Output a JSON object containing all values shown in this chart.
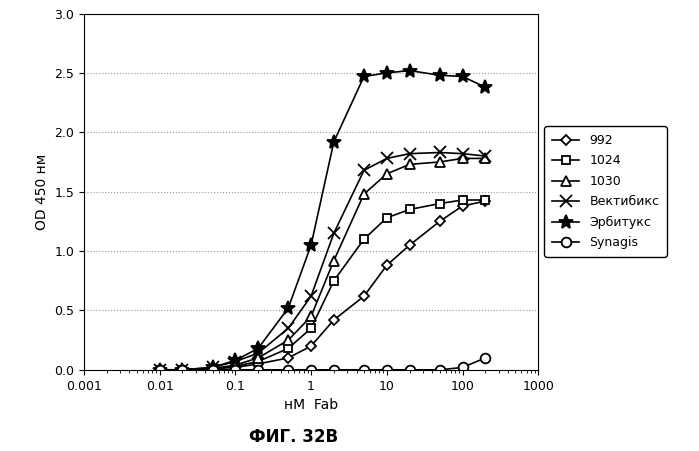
{
  "title": "ФИГ. 32В",
  "xlabel": "нМ  Fab",
  "ylabel": "OD 450 нм",
  "xlim": [
    0.001,
    1000
  ],
  "ylim": [
    0,
    3
  ],
  "yticks": [
    0,
    0.5,
    1,
    1.5,
    2,
    2.5,
    3
  ],
  "series": {
    "992": {
      "x": [
        0.01,
        0.02,
        0.05,
        0.1,
        0.2,
        0.5,
        1,
        2,
        5,
        10,
        20,
        50,
        100,
        200
      ],
      "y": [
        0.0,
        0.0,
        0.01,
        0.02,
        0.05,
        0.1,
        0.2,
        0.42,
        0.62,
        0.88,
        1.05,
        1.25,
        1.38,
        1.42
      ],
      "marker": "D",
      "markersize": 5,
      "mfc": "white",
      "mec": "black",
      "color": "black",
      "linestyle": "-"
    },
    "1024": {
      "x": [
        0.01,
        0.02,
        0.05,
        0.1,
        0.2,
        0.5,
        1,
        2,
        5,
        10,
        20,
        50,
        100,
        200
      ],
      "y": [
        0.0,
        0.0,
        0.01,
        0.03,
        0.07,
        0.18,
        0.35,
        0.75,
        1.1,
        1.28,
        1.35,
        1.4,
        1.43,
        1.43
      ],
      "marker": "s",
      "markersize": 6,
      "mfc": "white",
      "mec": "black",
      "color": "black",
      "linestyle": "-"
    },
    "1030": {
      "x": [
        0.01,
        0.02,
        0.05,
        0.1,
        0.2,
        0.5,
        1,
        2,
        5,
        10,
        20,
        50,
        100,
        200
      ],
      "y": [
        0.0,
        0.0,
        0.01,
        0.04,
        0.1,
        0.25,
        0.45,
        0.92,
        1.48,
        1.65,
        1.73,
        1.75,
        1.78,
        1.78
      ],
      "marker": "^",
      "markersize": 7,
      "mfc": "white",
      "mec": "black",
      "color": "black",
      "linestyle": "-"
    },
    "Вектибикс": {
      "x": [
        0.01,
        0.02,
        0.05,
        0.1,
        0.2,
        0.5,
        1,
        2,
        5,
        10,
        20,
        50,
        100,
        200
      ],
      "y": [
        0.0,
        0.0,
        0.02,
        0.07,
        0.14,
        0.35,
        0.62,
        1.15,
        1.68,
        1.78,
        1.82,
        1.83,
        1.82,
        1.8
      ],
      "marker": "x",
      "markersize": 8,
      "mfc": "black",
      "mec": "black",
      "color": "black",
      "linestyle": "-"
    },
    "Эрбитукс": {
      "x": [
        0.01,
        0.02,
        0.05,
        0.1,
        0.2,
        0.5,
        1,
        2,
        5,
        10,
        20,
        50,
        100,
        200
      ],
      "y": [
        0.0,
        0.0,
        0.02,
        0.08,
        0.18,
        0.52,
        1.05,
        1.92,
        2.47,
        2.5,
        2.52,
        2.48,
        2.47,
        2.38
      ],
      "marker": "*",
      "markersize": 10,
      "mfc": "black",
      "mec": "black",
      "color": "black",
      "linestyle": "-"
    },
    "Synagis": {
      "x": [
        0.01,
        0.02,
        0.05,
        0.1,
        0.2,
        0.5,
        1,
        2,
        5,
        10,
        20,
        50,
        100,
        200
      ],
      "y": [
        0.0,
        0.0,
        0.0,
        0.0,
        0.0,
        0.0,
        0.0,
        0.0,
        0.0,
        0.0,
        0.0,
        0.0,
        0.02,
        0.1
      ],
      "marker": "o",
      "markersize": 7,
      "mfc": "white",
      "mec": "black",
      "color": "black",
      "linestyle": "-"
    }
  },
  "legend_order": [
    "992",
    "1024",
    "1030",
    "Вектибикс",
    "Эрбитукс",
    "Synagis"
  ],
  "background_color": "#ffffff"
}
